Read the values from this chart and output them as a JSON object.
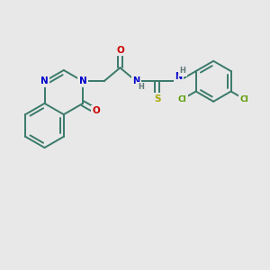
{
  "background_color": "#e8e8e8",
  "bond_color": "#3a7a6a",
  "bond_lw": 1.4,
  "colors": {
    "N": "#0000cc",
    "O": "#cc0000",
    "S": "#aaaa00",
    "Cl": "#5a9a00",
    "H": "#607878"
  },
  "figsize": [
    3.0,
    3.0
  ],
  "dpi": 100
}
